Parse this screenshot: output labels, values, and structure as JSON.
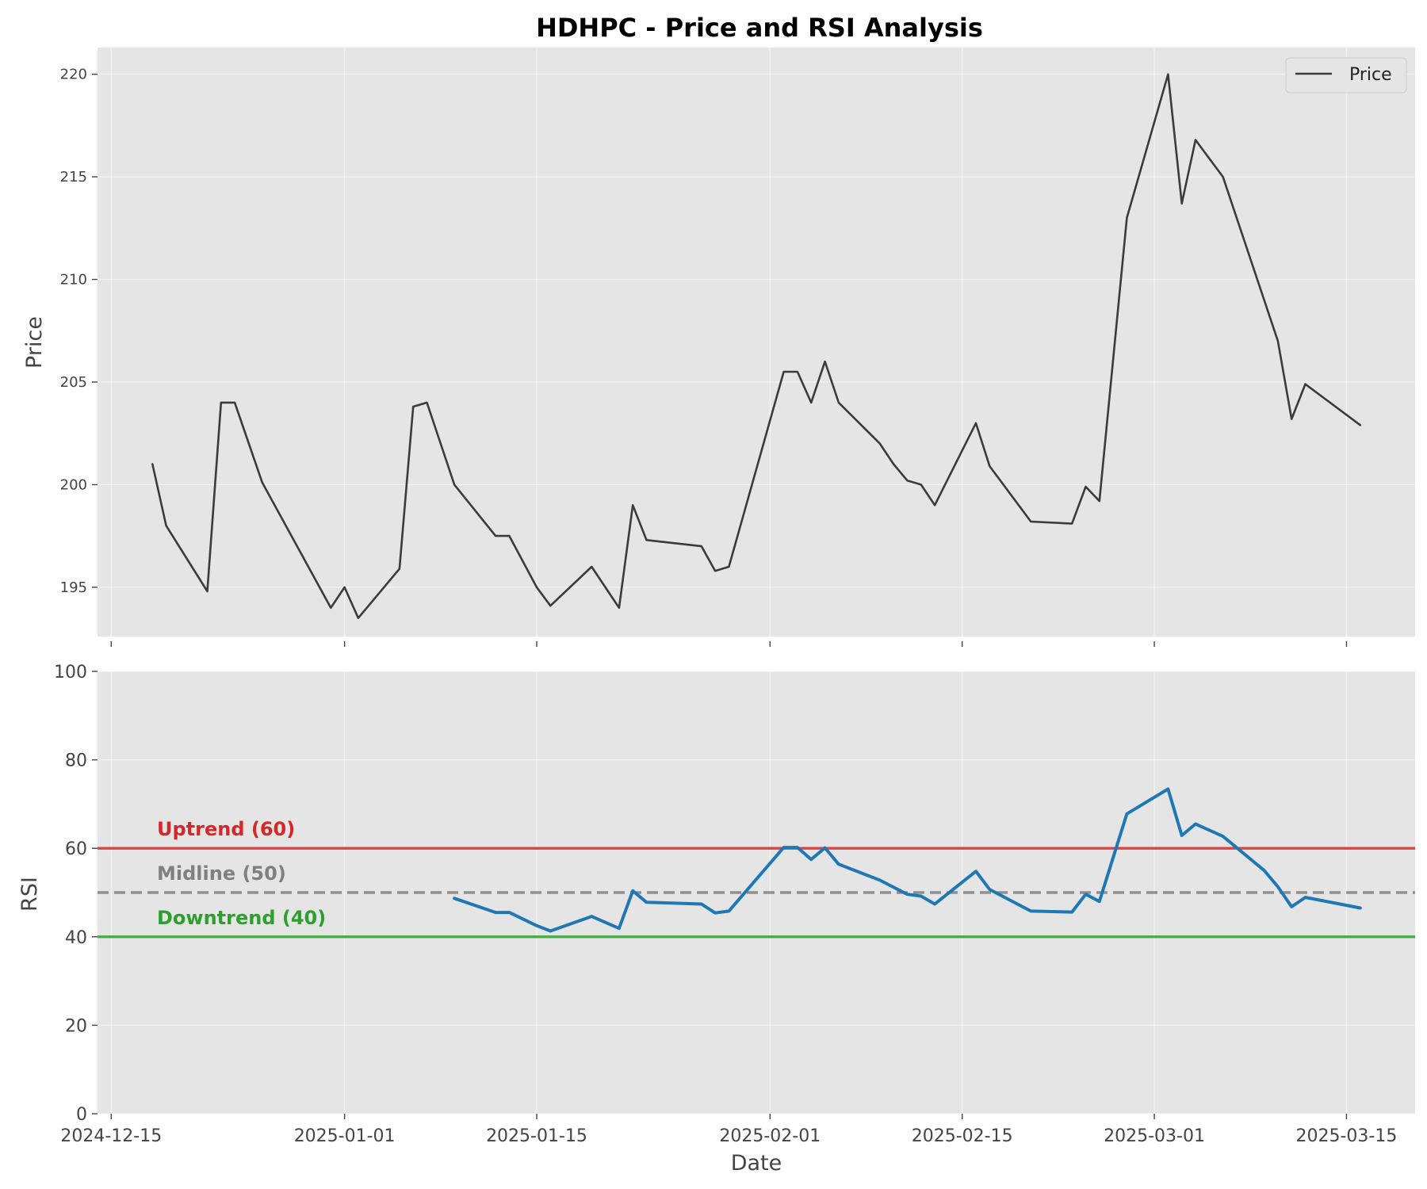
{
  "chart_data": {
    "title": "HDHPC - Price and RSI Analysis",
    "xlabel": "Date",
    "x_tick_labels": [
      "2024-12-15",
      "2025-01-01",
      "2025-01-15",
      "2025-02-01",
      "2025-02-15",
      "2025-03-01",
      "2025-03-15"
    ],
    "x_tick_dates": [
      "2024-12-15",
      "2025-01-01",
      "2025-01-15",
      "2025-02-01",
      "2025-02-15",
      "2025-03-01",
      "2025-03-15"
    ],
    "xlim": [
      "2024-12-14",
      "2025-03-20"
    ],
    "grid": true,
    "panels": [
      {
        "type": "line",
        "ylabel": "Price",
        "ylim": [
          192.6,
          221.3
        ],
        "y_ticks": [
          195,
          200,
          205,
          210,
          215,
          220
        ],
        "legend": {
          "placement": "top-right",
          "entries": [
            "Price"
          ]
        },
        "series": [
          {
            "name": "Price",
            "color": "#3b3b3b",
            "points": [
              [
                "2024-12-18",
                201.0
              ],
              [
                "2024-12-19",
                198.0
              ],
              [
                "2024-12-22",
                194.8
              ],
              [
                "2024-12-23",
                204.0
              ],
              [
                "2024-12-24",
                204.0
              ],
              [
                "2024-12-26",
                200.1
              ],
              [
                "2024-12-31",
                194.0
              ],
              [
                "2025-01-01",
                195.0
              ],
              [
                "2025-01-02",
                193.5
              ],
              [
                "2025-01-05",
                195.9
              ],
              [
                "2025-01-06",
                203.8
              ],
              [
                "2025-01-07",
                204.0
              ],
              [
                "2025-01-09",
                200.0
              ],
              [
                "2025-01-12",
                197.5
              ],
              [
                "2025-01-13",
                197.5
              ],
              [
                "2025-01-15",
                195.0
              ],
              [
                "2025-01-16",
                194.1
              ],
              [
                "2025-01-19",
                196.0
              ],
              [
                "2025-01-21",
                194.0
              ],
              [
                "2025-01-22",
                199.0
              ],
              [
                "2025-01-23",
                197.3
              ],
              [
                "2025-01-27",
                197.0
              ],
              [
                "2025-01-28",
                195.8
              ],
              [
                "2025-01-29",
                196.0
              ],
              [
                "2025-02-02",
                205.5
              ],
              [
                "2025-02-03",
                205.5
              ],
              [
                "2025-02-04",
                204.0
              ],
              [
                "2025-02-05",
                206.0
              ],
              [
                "2025-02-06",
                204.0
              ],
              [
                "2025-02-09",
                202.0
              ],
              [
                "2025-02-10",
                201.0
              ],
              [
                "2025-02-11",
                200.2
              ],
              [
                "2025-02-12",
                200.0
              ],
              [
                "2025-02-13",
                199.0
              ],
              [
                "2025-02-16",
                203.0
              ],
              [
                "2025-02-17",
                200.9
              ],
              [
                "2025-02-20",
                198.2
              ],
              [
                "2025-02-23",
                198.1
              ],
              [
                "2025-02-24",
                199.9
              ],
              [
                "2025-02-25",
                199.2
              ],
              [
                "2025-02-27",
                213.0
              ],
              [
                "2025-03-02",
                220.0
              ],
              [
                "2025-03-03",
                213.7
              ],
              [
                "2025-03-04",
                216.8
              ],
              [
                "2025-03-06",
                215.0
              ],
              [
                "2025-03-10",
                207.0
              ],
              [
                "2025-03-11",
                203.2
              ],
              [
                "2025-03-12",
                204.9
              ],
              [
                "2025-03-16",
                202.9
              ]
            ]
          }
        ]
      },
      {
        "type": "line",
        "ylabel": "RSI",
        "ylim": [
          0,
          100
        ],
        "y_ticks": [
          0,
          20,
          40,
          60,
          80,
          100
        ],
        "series": [
          {
            "name": "RSI",
            "color": "#1f77b4",
            "points": [
              [
                "2025-01-09",
                48.7
              ],
              [
                "2025-01-12",
                45.5
              ],
              [
                "2025-01-13",
                45.5
              ],
              [
                "2025-01-15",
                42.5
              ],
              [
                "2025-01-16",
                41.3
              ],
              [
                "2025-01-19",
                44.6
              ],
              [
                "2025-01-21",
                41.9
              ],
              [
                "2025-01-22",
                50.4
              ],
              [
                "2025-01-23",
                47.8
              ],
              [
                "2025-01-27",
                47.4
              ],
              [
                "2025-01-28",
                45.4
              ],
              [
                "2025-01-29",
                45.8
              ],
              [
                "2025-02-02",
                60.2
              ],
              [
                "2025-02-03",
                60.2
              ],
              [
                "2025-02-04",
                57.5
              ],
              [
                "2025-02-05",
                60.1
              ],
              [
                "2025-02-06",
                56.4
              ],
              [
                "2025-02-09",
                52.8
              ],
              [
                "2025-02-11",
                49.6
              ],
              [
                "2025-02-12",
                49.2
              ],
              [
                "2025-02-13",
                47.4
              ],
              [
                "2025-02-16",
                54.8
              ],
              [
                "2025-02-17",
                50.7
              ],
              [
                "2025-02-20",
                45.8
              ],
              [
                "2025-02-23",
                45.6
              ],
              [
                "2025-02-24",
                49.6
              ],
              [
                "2025-02-25",
                48.0
              ],
              [
                "2025-02-27",
                67.8
              ],
              [
                "2025-03-02",
                73.4
              ],
              [
                "2025-03-03",
                62.9
              ],
              [
                "2025-03-04",
                65.5
              ],
              [
                "2025-03-06",
                62.7
              ],
              [
                "2025-03-09",
                55.0
              ],
              [
                "2025-03-10",
                51.3
              ],
              [
                "2025-03-11",
                46.8
              ],
              [
                "2025-03-12",
                48.9
              ],
              [
                "2025-03-16",
                46.5
              ]
            ]
          }
        ],
        "reference_lines": [
          {
            "value": 60,
            "label": "Uptrend (60)",
            "color": "#d62728",
            "style": "solid"
          },
          {
            "value": 50,
            "label": "Midline (50)",
            "color": "#808080",
            "style": "dashed"
          },
          {
            "value": 40,
            "label": "Downtrend (40)",
            "color": "#2ca02c",
            "style": "solid"
          }
        ]
      }
    ]
  }
}
